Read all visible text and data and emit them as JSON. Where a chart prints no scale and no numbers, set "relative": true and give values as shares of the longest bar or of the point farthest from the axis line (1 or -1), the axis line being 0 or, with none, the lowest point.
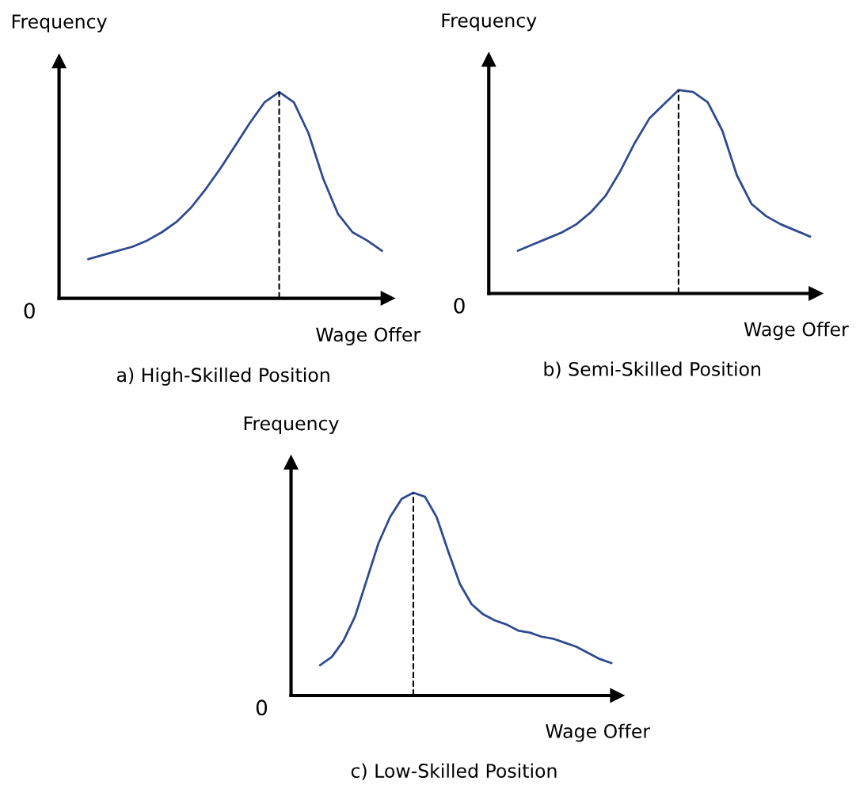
{
  "chart_data": [
    {
      "type": "line",
      "title": "a) High-Skilled Position",
      "xlabel": "Wage Offer",
      "ylabel": "Frequency",
      "relative": true,
      "annotations": [
        "0"
      ],
      "marker": "none",
      "line_style": "solid",
      "tick_labels": false,
      "categories": [
        null,
        null,
        null,
        null,
        null,
        null,
        null,
        null,
        null,
        null,
        null,
        null,
        null,
        null,
        null,
        null,
        null,
        null,
        null,
        null,
        null
      ],
      "series": [
        {
          "color": "#2f4b8f",
          "values": [
            0.19,
            0.21,
            0.23,
            0.25,
            0.28,
            0.32,
            0.37,
            0.44,
            0.53,
            0.63,
            0.74,
            0.85,
            0.95,
            1.0,
            0.95,
            0.8,
            0.58,
            0.41,
            0.32,
            0.28,
            0.23
          ]
        }
      ]
    },
    {
      "type": "line",
      "title": "b) Semi-Skilled Position",
      "xlabel": "Wage Offer",
      "ylabel": "Frequency",
      "relative": true,
      "annotations": [
        "0"
      ],
      "marker": "none",
      "line_style": "solid",
      "tick_labels": false,
      "categories": [
        null,
        null,
        null,
        null,
        null,
        null,
        null,
        null,
        null,
        null,
        null,
        null,
        null,
        null,
        null,
        null,
        null,
        null,
        null,
        null,
        null
      ],
      "series": [
        {
          "color": "#2f4b8f",
          "values": [
            0.21,
            0.24,
            0.27,
            0.3,
            0.34,
            0.4,
            0.48,
            0.6,
            0.74,
            0.86,
            0.93,
            1.0,
            0.99,
            0.94,
            0.8,
            0.58,
            0.44,
            0.38,
            0.34,
            0.31,
            0.28
          ]
        }
      ]
    },
    {
      "type": "line",
      "title": "c) Low-Skilled Position",
      "xlabel": "Wage Offer",
      "ylabel": "Frequency",
      "relative": true,
      "annotations": [
        "0"
      ],
      "marker": "none",
      "line_style": "solid",
      "tick_labels": false,
      "categories": [
        null,
        null,
        null,
        null,
        null,
        null,
        null,
        null,
        null,
        null,
        null,
        null,
        null,
        null,
        null,
        null,
        null,
        null,
        null,
        null,
        null,
        null,
        null,
        null,
        null,
        null
      ],
      "series": [
        {
          "color": "#2f4b8f",
          "values": [
            0.15,
            0.19,
            0.27,
            0.39,
            0.57,
            0.75,
            0.88,
            0.97,
            1.0,
            0.98,
            0.88,
            0.71,
            0.55,
            0.45,
            0.4,
            0.37,
            0.35,
            0.32,
            0.31,
            0.29,
            0.28,
            0.26,
            0.24,
            0.21,
            0.18,
            0.16
          ]
        }
      ]
    }
  ]
}
